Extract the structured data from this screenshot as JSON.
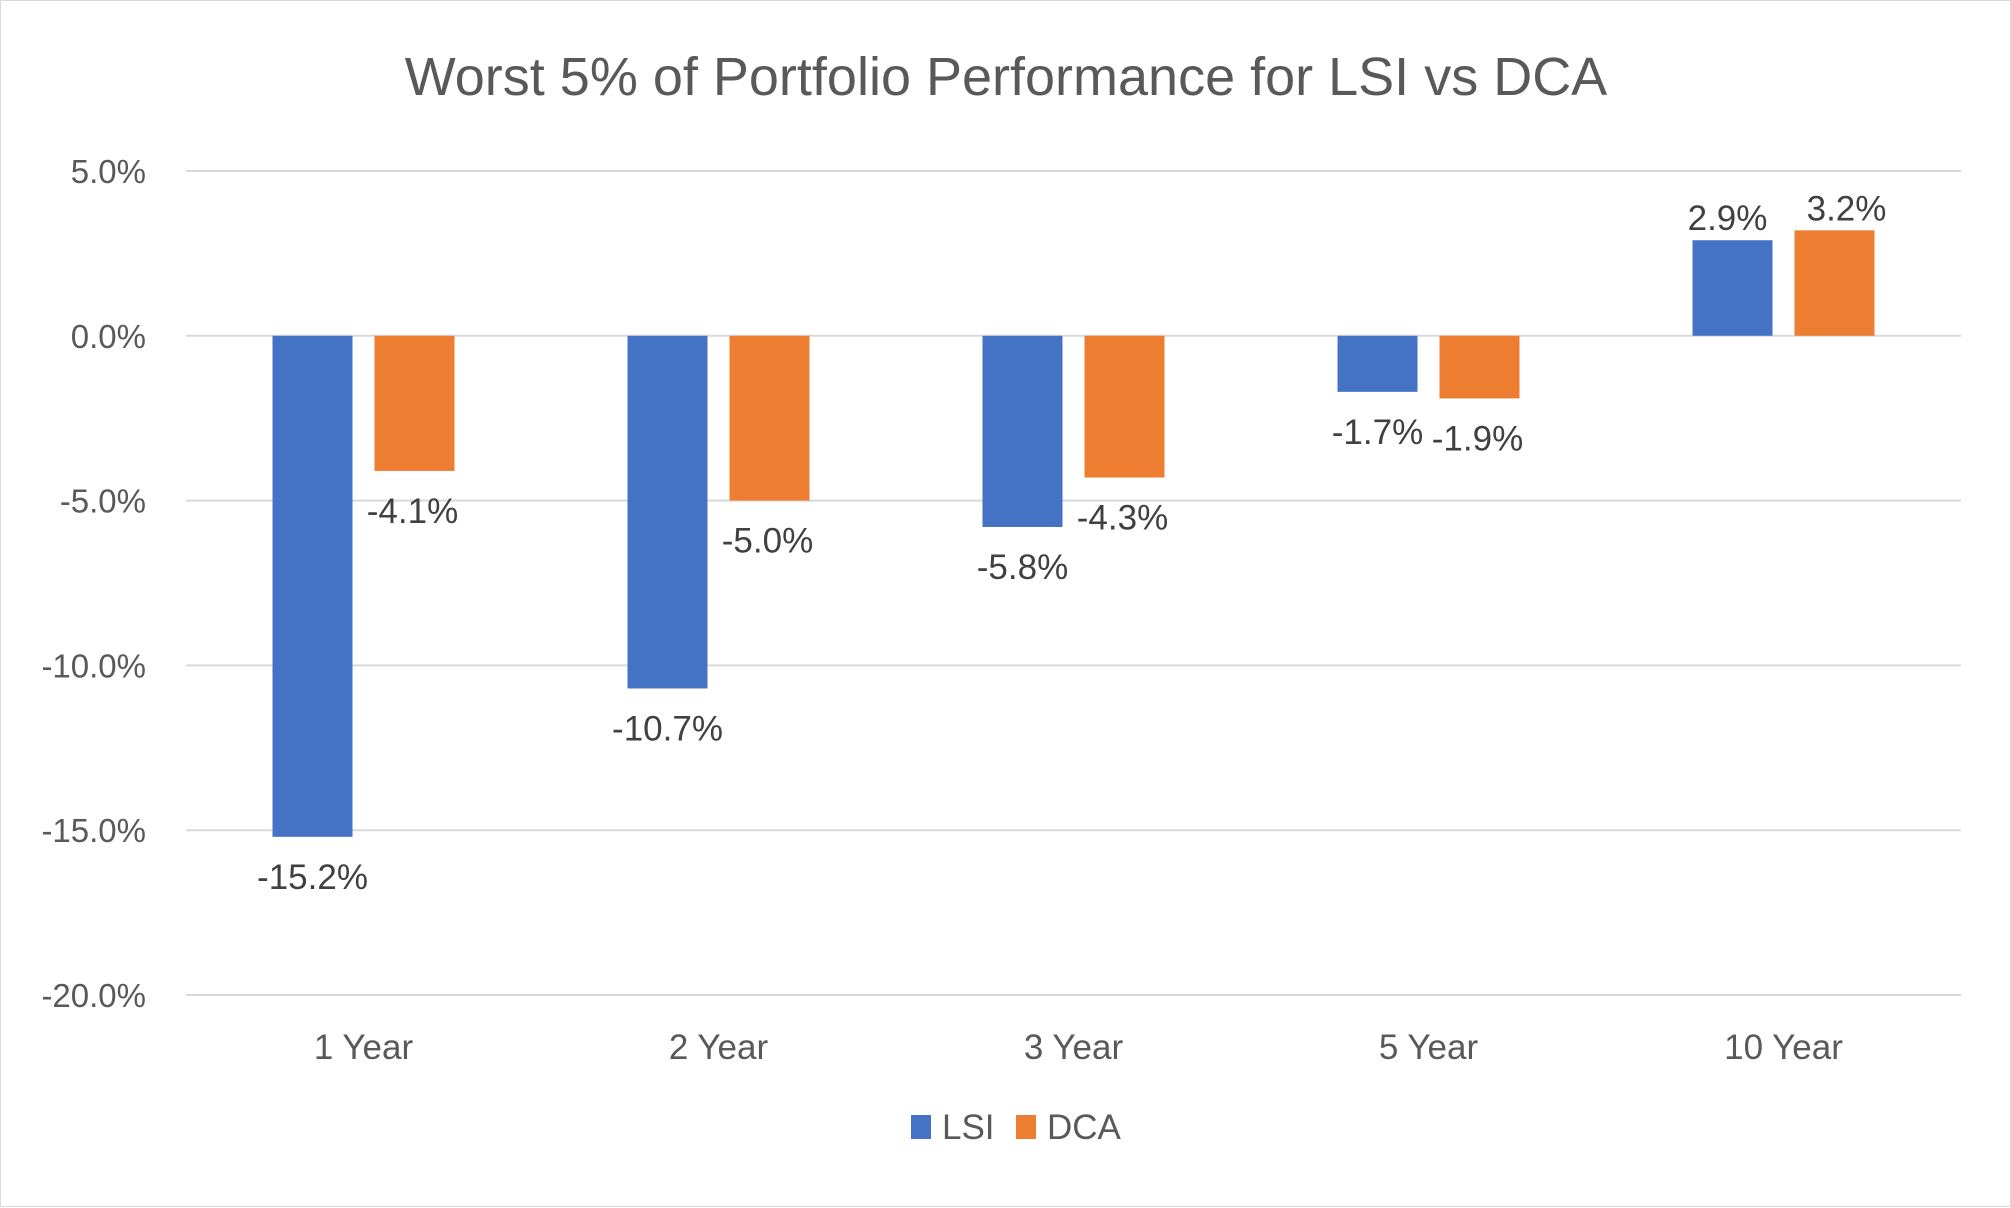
{
  "chart_data": {
    "type": "bar",
    "title": "Worst 5% of Portfolio Performance for LSI vs DCA",
    "categories": [
      "1 Year",
      "2 Year",
      "3 Year",
      "5 Year",
      "10 Year"
    ],
    "series": [
      {
        "name": "LSI",
        "color": "#4472c4",
        "values": [
          -15.2,
          -10.7,
          -5.8,
          -1.7,
          2.9
        ],
        "labels": [
          "-15.2%",
          "-10.7%",
          "-5.8%",
          "-1.7%",
          "2.9%"
        ]
      },
      {
        "name": "DCA",
        "color": "#ed7d31",
        "values": [
          -4.1,
          -5.0,
          -4.3,
          -1.9,
          3.2
        ],
        "labels": [
          "-4.1%",
          "-5.0%",
          "-4.3%",
          "-1.9%",
          "3.2%"
        ]
      }
    ],
    "y_ticks": [
      5.0,
      0.0,
      -5.0,
      -10.0,
      -15.0,
      -20.0
    ],
    "y_tick_labels": [
      "5.0%",
      "0.0%",
      "-5.0%",
      "-10.0%",
      "-15.0%",
      "-20.0%"
    ],
    "ylim": [
      -20,
      5
    ],
    "grid": true,
    "legend": "bottom",
    "gridline_color": "#d9d9d9"
  }
}
